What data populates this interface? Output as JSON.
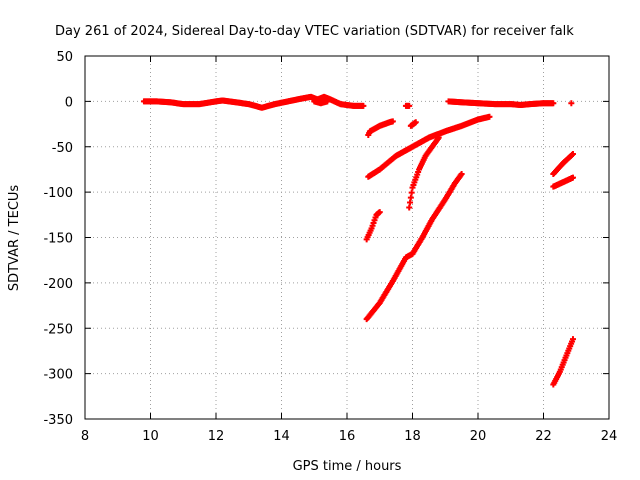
{
  "chart_data": {
    "type": "scatter",
    "title": "Day 261 of 2024, Sidereal Day-to-day VTEC variation (SDTVAR) for receiver falk",
    "xlabel": "GPS time / hours",
    "ylabel": "SDTVAR / TECUs",
    "xlim": [
      8,
      24
    ],
    "ylim": [
      -350,
      50
    ],
    "xticks": [
      8,
      10,
      12,
      14,
      16,
      18,
      20,
      22,
      24
    ],
    "yticks": [
      50,
      0,
      -50,
      -100,
      -150,
      -200,
      -250,
      -300,
      -350
    ],
    "grid": true,
    "marker": "plus",
    "color": "#ff0000",
    "segments": [
      {
        "points": [
          [
            9.8,
            0
          ],
          [
            10.2,
            0
          ],
          [
            10.6,
            -1
          ],
          [
            11.0,
            -3
          ],
          [
            11.5,
            -3
          ],
          [
            12.0,
            0
          ],
          [
            12.2,
            1
          ],
          [
            12.6,
            -1
          ],
          [
            13.0,
            -3
          ],
          [
            13.4,
            -7
          ],
          [
            13.8,
            -3
          ],
          [
            14.2,
            0
          ],
          [
            14.6,
            3
          ],
          [
            14.9,
            5
          ],
          [
            15.1,
            2
          ],
          [
            15.3,
            5
          ],
          [
            15.5,
            2
          ],
          [
            15.8,
            -3
          ],
          [
            16.2,
            -5
          ],
          [
            16.5,
            -5
          ]
        ]
      },
      {
        "points": [
          [
            15.0,
            0
          ],
          [
            15.2,
            -2
          ],
          [
            15.4,
            0
          ]
        ]
      },
      {
        "points": [
          [
            17.8,
            -5
          ],
          [
            17.9,
            -5
          ]
        ]
      },
      {
        "points": [
          [
            16.65,
            -37
          ],
          [
            16.7,
            -33
          ],
          [
            17.0,
            -27
          ],
          [
            17.3,
            -23
          ],
          [
            17.4,
            -22
          ]
        ]
      },
      {
        "points": [
          [
            17.95,
            -27
          ],
          [
            18.1,
            -23
          ]
        ]
      },
      {
        "points": [
          [
            19.1,
            0
          ],
          [
            19.5,
            -1
          ],
          [
            20.0,
            -2
          ],
          [
            20.5,
            -3
          ],
          [
            21.0,
            -3
          ],
          [
            21.3,
            -4
          ],
          [
            21.6,
            -3
          ],
          [
            22.0,
            -2
          ],
          [
            22.3,
            -2
          ]
        ]
      },
      {
        "points": [
          [
            22.85,
            -2
          ]
        ]
      },
      {
        "points": [
          [
            16.65,
            -83
          ],
          [
            17.0,
            -75
          ],
          [
            17.5,
            -60
          ],
          [
            18.0,
            -50
          ],
          [
            18.5,
            -40
          ],
          [
            19.0,
            -33
          ],
          [
            19.5,
            -27
          ],
          [
            20.0,
            -20
          ],
          [
            20.35,
            -17
          ]
        ]
      },
      {
        "points": [
          [
            17.9,
            -117
          ],
          [
            18.0,
            -95
          ],
          [
            18.2,
            -75
          ],
          [
            18.4,
            -60
          ],
          [
            18.6,
            -50
          ],
          [
            18.8,
            -40
          ]
        ]
      },
      {
        "points": [
          [
            16.6,
            -152
          ],
          [
            16.75,
            -140
          ],
          [
            16.9,
            -125
          ],
          [
            17.0,
            -122
          ]
        ]
      },
      {
        "points": [
          [
            16.6,
            -240
          ],
          [
            17.0,
            -222
          ],
          [
            17.4,
            -198
          ],
          [
            17.8,
            -172
          ],
          [
            18.0,
            -168
          ],
          [
            18.3,
            -150
          ],
          [
            18.6,
            -130
          ],
          [
            19.0,
            -108
          ],
          [
            19.3,
            -90
          ],
          [
            19.5,
            -80
          ]
        ]
      },
      {
        "points": [
          [
            22.3,
            -80
          ],
          [
            22.6,
            -68
          ],
          [
            22.9,
            -58
          ]
        ]
      },
      {
        "points": [
          [
            22.3,
            -94
          ],
          [
            22.6,
            -89
          ],
          [
            22.9,
            -84
          ]
        ]
      },
      {
        "points": [
          [
            22.3,
            -312
          ],
          [
            22.5,
            -298
          ],
          [
            22.7,
            -280
          ],
          [
            22.9,
            -262
          ]
        ]
      }
    ]
  }
}
